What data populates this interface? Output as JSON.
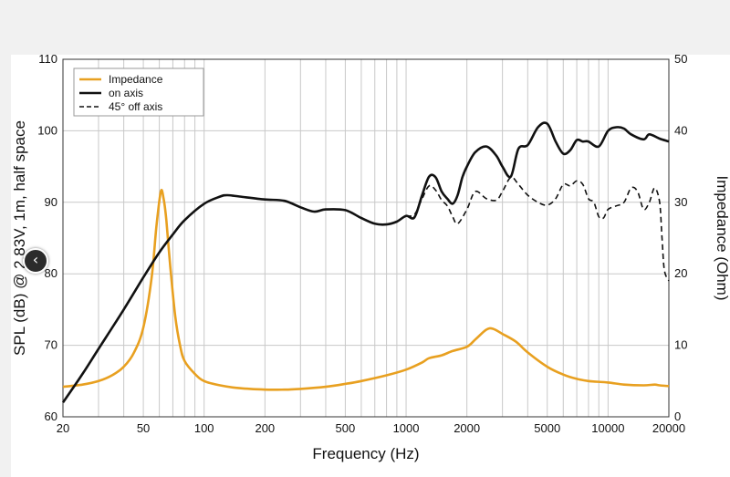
{
  "chart_data": {
    "type": "line",
    "xlabel": "Frequency (Hz)",
    "ylabel": "SPL (dB) @ 2.83V, 1m, half space",
    "ylabel_right": "Impedance (Ohm)",
    "xscale": "log",
    "xlim": [
      20,
      20000
    ],
    "ylim": [
      60,
      110
    ],
    "ylim_right": [
      0,
      50
    ],
    "x_ticks": [
      "20",
      "50",
      "100",
      "200",
      "500",
      "1000",
      "2000",
      "5000",
      "10000",
      "20000"
    ],
    "y_ticks": [
      "60",
      "70",
      "80",
      "90",
      "100",
      "110"
    ],
    "y_ticks_right": [
      "0",
      "10",
      "20",
      "30",
      "40",
      "50"
    ],
    "grid": true,
    "legend_position": "top-left",
    "series": [
      {
        "name": "Impedance",
        "axis": "right",
        "color": "#e8a020",
        "style": "solid",
        "x": [
          20,
          25,
          30,
          35,
          40,
          45,
          50,
          55,
          58,
          61,
          63,
          65,
          68,
          72,
          76,
          80,
          90,
          100,
          120,
          150,
          200,
          250,
          300,
          400,
          500,
          600,
          800,
          1000,
          1200,
          1300,
          1500,
          1700,
          2000,
          2200,
          2500,
          2700,
          3000,
          3500,
          4000,
          5000,
          6000,
          7000,
          8000,
          10000,
          12000,
          15000,
          17000,
          18000,
          20000
        ],
        "y": [
          4.2,
          4.5,
          5.0,
          5.8,
          7.0,
          9.0,
          12.5,
          19.5,
          26.5,
          31.5,
          30.5,
          27.5,
          21.0,
          14.0,
          10.0,
          7.8,
          6.0,
          5.0,
          4.4,
          4.0,
          3.8,
          3.8,
          3.9,
          4.2,
          4.6,
          5.0,
          5.8,
          6.6,
          7.6,
          8.2,
          8.6,
          9.2,
          9.8,
          10.8,
          12.2,
          12.3,
          11.6,
          10.5,
          9.0,
          7.0,
          5.9,
          5.3,
          5.0,
          4.8,
          4.5,
          4.4,
          4.5,
          4.4,
          4.3
        ]
      },
      {
        "name": "on axis",
        "axis": "left",
        "color": "#111111",
        "style": "solid",
        "x": [
          20,
          25,
          30,
          40,
          50,
          60,
          70,
          80,
          100,
          120,
          130,
          150,
          200,
          250,
          300,
          350,
          400,
          500,
          600,
          700,
          800,
          900,
          1000,
          1100,
          1200,
          1300,
          1400,
          1500,
          1600,
          1700,
          1800,
          1900,
          2000,
          2200,
          2500,
          2800,
          3000,
          3300,
          3600,
          4000,
          4500,
          5000,
          5500,
          6000,
          6500,
          7000,
          7500,
          8000,
          9000,
          10000,
          11000,
          12000,
          13000,
          15000,
          16000,
          18000,
          20000
        ],
        "y": [
          62,
          66,
          69.5,
          75,
          79.5,
          83,
          85.5,
          87.5,
          89.8,
          90.8,
          91,
          90.8,
          90.4,
          90.2,
          89.3,
          88.7,
          89.0,
          88.9,
          87.8,
          87.0,
          86.9,
          87.3,
          88.1,
          87.9,
          91.0,
          93.6,
          93.5,
          91.5,
          90.5,
          89.8,
          91.0,
          93.5,
          95.0,
          97.0,
          97.8,
          96.5,
          95.0,
          93.6,
          97.5,
          98.0,
          100.5,
          101.0,
          98.5,
          96.8,
          97.3,
          98.7,
          98.5,
          98.5,
          97.8,
          100.0,
          100.5,
          100.3,
          99.5,
          98.8,
          99.5,
          98.9,
          98.5
        ]
      },
      {
        "name": "45° off axis",
        "axis": "left",
        "color": "#111111",
        "style": "dashed",
        "x": [
          1000,
          1100,
          1200,
          1300,
          1400,
          1500,
          1600,
          1700,
          1800,
          2000,
          2200,
          2500,
          2800,
          3000,
          3300,
          3600,
          4000,
          4500,
          5000,
          5500,
          6000,
          6500,
          7000,
          7500,
          8000,
          8500,
          9000,
          9500,
          10000,
          11000,
          12000,
          13000,
          14000,
          15000,
          16000,
          17000,
          18000,
          18500,
          19000,
          20000
        ],
        "y": [
          88.1,
          88.3,
          90.5,
          92.3,
          91.7,
          90.3,
          89.5,
          88.0,
          87.0,
          89.0,
          91.5,
          90.5,
          90.3,
          91.5,
          93.5,
          92.5,
          91.0,
          90.0,
          89.6,
          90.5,
          92.5,
          92.3,
          93.0,
          92.5,
          90.5,
          90.0,
          88.0,
          87.8,
          89.0,
          89.5,
          90.0,
          92.0,
          91.5,
          89.0,
          90.0,
          92.0,
          90.0,
          85.0,
          80.5,
          79.0
        ]
      }
    ]
  },
  "ui": {
    "nav_icon_glyph": "‹"
  }
}
